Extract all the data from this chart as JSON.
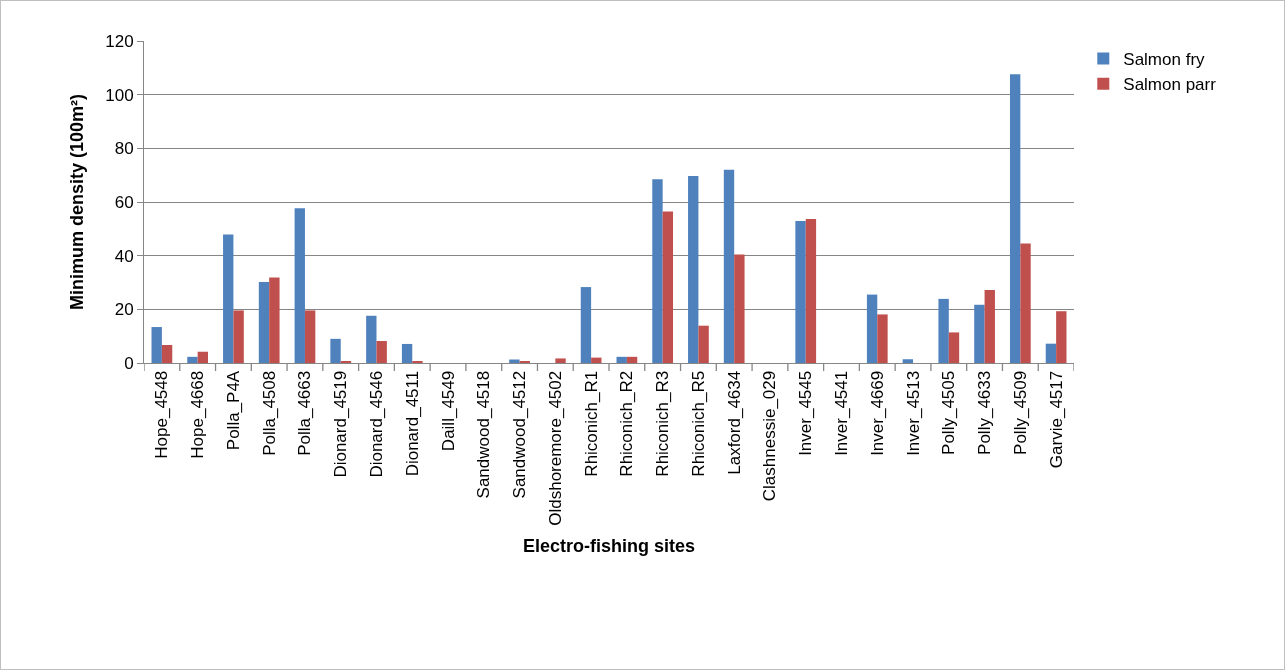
{
  "chart_data": {
    "type": "bar",
    "xlabel": "Electro-fishing sites",
    "ylabel": "Minimum density (100m²)",
    "categories": [
      "Hope_4548",
      "Hope_4668",
      "Polla_P4A",
      "Polla_4508",
      "Polla_4663",
      "Dionard_4519",
      "Dionard_4546",
      "Dionard_4511",
      "Daill_4549",
      "Sandwood_4518",
      "Sandwood_4512",
      "Oldshoremore_4502",
      "Rhiconich_R1",
      "Rhiconich_R2",
      "Rhiconich_R3",
      "Rhiconich_R5",
      "Laxford_4634",
      "Clashnessie_029",
      "Inver_4545",
      "Inver_4541",
      "Inver_4669",
      "Inver_4513",
      "Polly_4505",
      "Polly_4633",
      "Polly_4509",
      "Garvie_4517"
    ],
    "series": [
      {
        "name": "Salmon fry",
        "color": "#4f81bd",
        "values": [
          13.4,
          2.3,
          47.9,
          30.2,
          57.7,
          9.0,
          17.6,
          7.1,
          0,
          0,
          1.3,
          0,
          28.3,
          2.3,
          68.5,
          69.7,
          72.0,
          0,
          52.9,
          0,
          25.5,
          1.4,
          23.9,
          21.7,
          107.6,
          7.2
        ]
      },
      {
        "name": "Salmon parr",
        "color": "#c0504d",
        "values": [
          6.7,
          4.2,
          19.6,
          31.9,
          19.6,
          0.5,
          8.2,
          0.5,
          0,
          0,
          0.6,
          1.7,
          2.0,
          2.3,
          56.5,
          13.9,
          40.4,
          0,
          53.7,
          0,
          18.1,
          0,
          11.4,
          27.2,
          44.5,
          19.3
        ]
      }
    ],
    "ylim": [
      0,
      120
    ],
    "yticks": [
      0,
      20,
      40,
      60,
      80,
      100,
      120
    ],
    "grid": "y",
    "legend": "top right"
  }
}
